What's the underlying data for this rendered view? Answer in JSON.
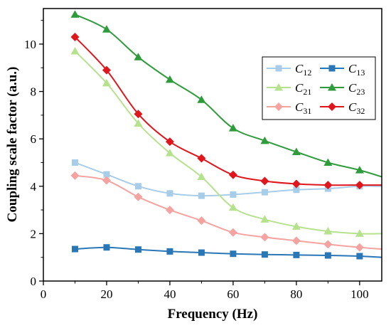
{
  "chart_data": {
    "type": "line",
    "xlabel": "Frequency (Hz)",
    "ylabel": "Coupling scale factor (a.u.)",
    "xlim": [
      0,
      107
    ],
    "ylim": [
      0,
      11.5
    ],
    "xticks": [
      0,
      20,
      40,
      60,
      80,
      100
    ],
    "yticks": [
      0,
      2,
      4,
      6,
      8,
      10
    ],
    "grid": false,
    "legend_position": "top-right",
    "x": [
      10,
      20,
      30,
      40,
      50,
      60,
      70,
      80,
      90,
      100
    ],
    "series": [
      {
        "name": "C12",
        "label_main": "C",
        "label_sub": "12",
        "color": "#a8cde8",
        "marker": "square",
        "values": [
          5.0,
          4.5,
          4.0,
          3.7,
          3.6,
          3.65,
          3.75,
          3.85,
          3.9,
          4.0
        ],
        "x_end": 107,
        "y_end": 4.0
      },
      {
        "name": "C13",
        "label_main": "C",
        "label_sub": "13",
        "color": "#2a77b8",
        "marker": "square",
        "values": [
          1.35,
          1.42,
          1.33,
          1.25,
          1.2,
          1.15,
          1.12,
          1.1,
          1.08,
          1.05
        ],
        "x_end": 107,
        "y_end": 1.0
      },
      {
        "name": "C21",
        "label_main": "C",
        "label_sub": "21",
        "color": "#b6e28e",
        "marker": "triangle",
        "values": [
          9.7,
          8.35,
          6.65,
          5.4,
          4.4,
          3.1,
          2.6,
          2.3,
          2.1,
          2.0
        ],
        "x_end": 107,
        "y_end": 2.0
      },
      {
        "name": "C23",
        "label_main": "C",
        "label_sub": "23",
        "color": "#2e9c3a",
        "marker": "triangle",
        "values": [
          11.25,
          10.62,
          9.45,
          8.5,
          7.65,
          6.45,
          5.92,
          5.45,
          5.0,
          4.68
        ],
        "x_end": 107,
        "y_end": 4.4
      },
      {
        "name": "C31",
        "label_main": "C",
        "label_sub": "31",
        "color": "#f4a3a1",
        "marker": "diamond",
        "values": [
          4.45,
          4.25,
          3.55,
          3.0,
          2.55,
          2.05,
          1.85,
          1.7,
          1.55,
          1.42
        ],
        "x_end": 107,
        "y_end": 1.35
      },
      {
        "name": "C32",
        "label_main": "C",
        "label_sub": "32",
        "color": "#e0161d",
        "marker": "diamond",
        "values": [
          10.3,
          8.9,
          7.05,
          5.88,
          5.18,
          4.48,
          4.22,
          4.1,
          4.05,
          4.05
        ],
        "x_end": 107,
        "y_end": 4.05
      }
    ]
  }
}
